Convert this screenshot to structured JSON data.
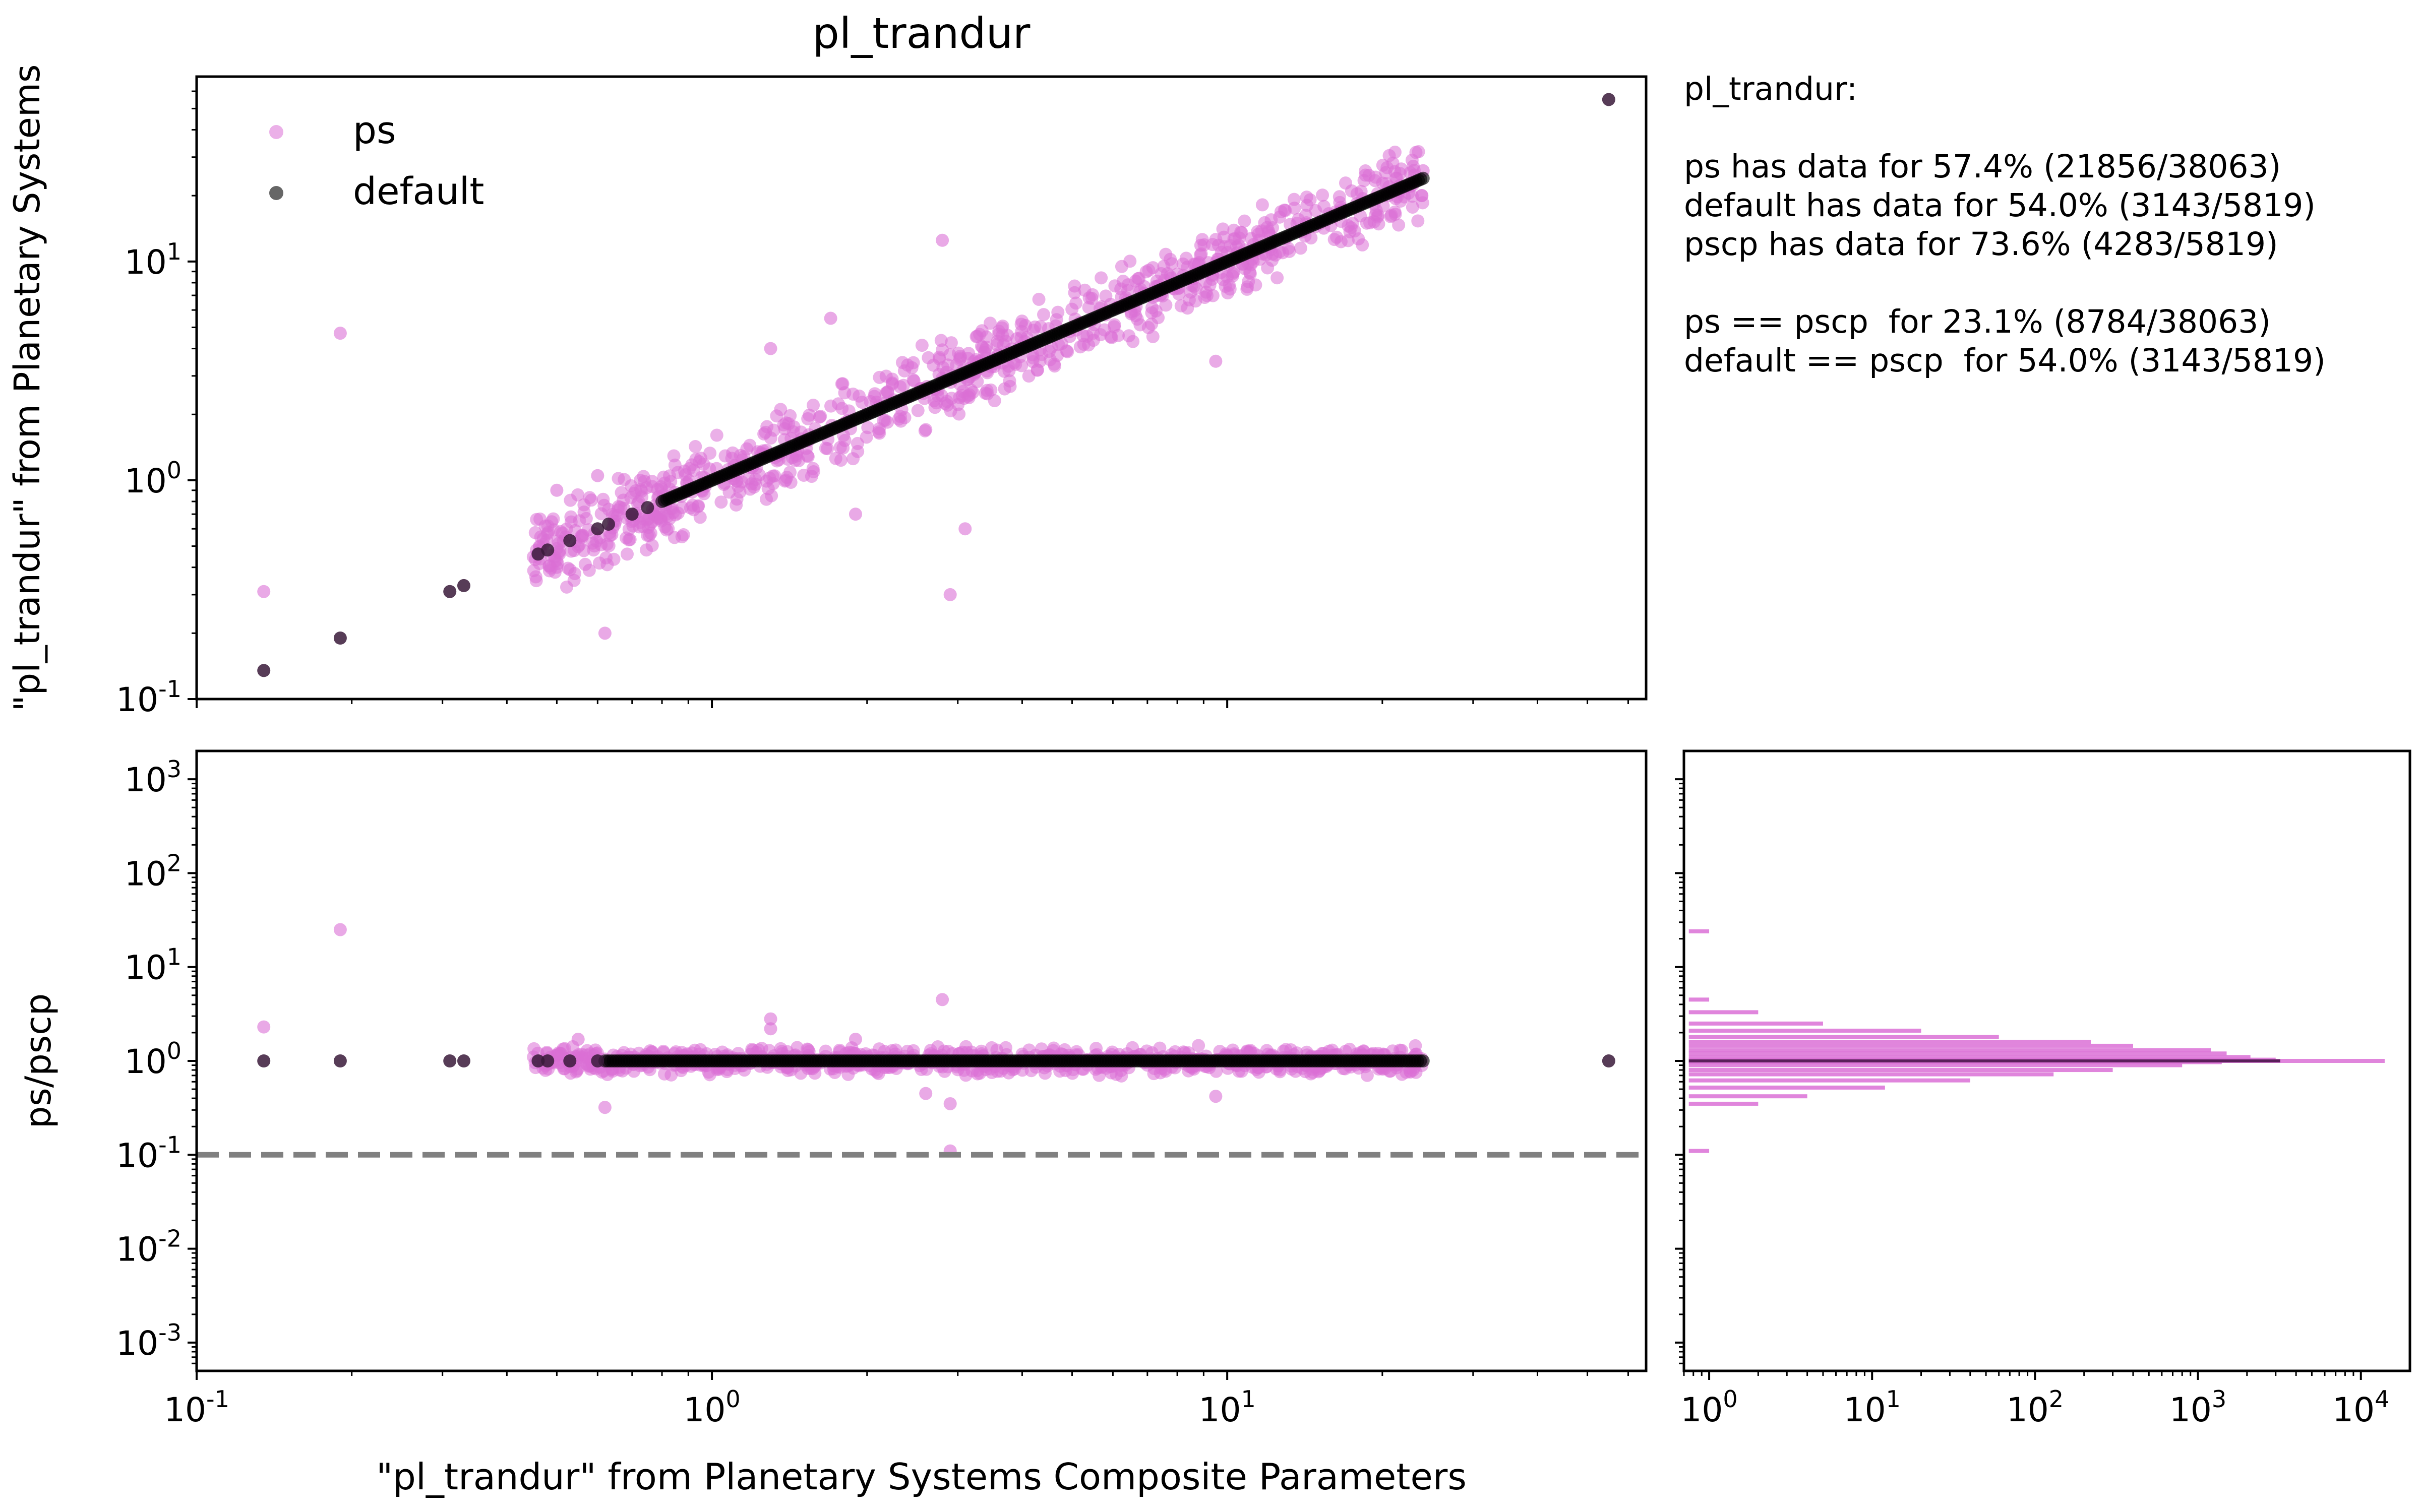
{
  "stats": {
    "header": "pl_trandur:",
    "line1": "ps has data for 57.4% (21856/38063)",
    "line2": "default has data for 54.0% (3143/5819)",
    "line3": "pscp has data for 73.6% (4283/5819)",
    "line4": "ps == pscp  for 23.1% (8784/38063)",
    "line5": "default == pscp  for 54.0% (3143/5819)"
  },
  "colors": {
    "ps": "#da70d6",
    "default": "#000000",
    "dashed": "#808080"
  },
  "chart_data": [
    {
      "type": "scatter",
      "title": "pl_trandur",
      "xlabel": "",
      "ylabel": "\"pl_trandur\" from Planetary Systems",
      "xscale": "log",
      "yscale": "log",
      "xlim": [
        0.1,
        65
      ],
      "ylim": [
        0.1,
        70
      ],
      "yticks": [
        0.1,
        1,
        10
      ],
      "legend": {
        "placement": "top-left",
        "entries": [
          "ps",
          "default"
        ]
      },
      "series": [
        {
          "name": "default",
          "points": [
            [
              0.135,
              0.135
            ],
            [
              0.19,
              0.19
            ],
            [
              0.31,
              0.31
            ],
            [
              0.33,
              0.33
            ],
            [
              0.46,
              0.46
            ],
            [
              0.48,
              0.48
            ],
            [
              0.53,
              0.53
            ],
            [
              0.6,
              0.6
            ],
            [
              0.63,
              0.63
            ],
            [
              0.7,
              0.7
            ],
            [
              0.75,
              0.75
            ],
            [
              55,
              55
            ]
          ],
          "line_range": [
            0.8,
            24
          ]
        },
        {
          "name": "ps",
          "points": [
            [
              0.135,
              0.31
            ],
            [
              0.19,
              4.7
            ],
            [
              0.62,
              0.2
            ],
            [
              2.9,
              0.3
            ],
            [
              2.8,
              12.5
            ],
            [
              1.7,
              5.5
            ],
            [
              3.1,
              0.6
            ],
            [
              1.3,
              4.0
            ],
            [
              9.5,
              3.5
            ],
            [
              0.6,
              1.05
            ],
            [
              24,
              26
            ],
            [
              1.9,
              0.7
            ],
            [
              0.5,
              0.9
            ],
            [
              0.5,
              0.4
            ]
          ],
          "band_range": [
            0.45,
            24
          ],
          "band_spread": 0.15
        }
      ]
    },
    {
      "type": "scatter",
      "title": "",
      "xlabel": "\"pl_trandur\" from Planetary Systems Composite Parameters",
      "ylabel": "ps/pscp",
      "xscale": "log",
      "yscale": "log",
      "xlim": [
        0.1,
        65
      ],
      "ylim": [
        0.0005,
        2000
      ],
      "xticks": [
        0.1,
        1,
        10
      ],
      "yticks": [
        0.001,
        0.01,
        0.1,
        1,
        10,
        100,
        1000
      ],
      "reference_line": {
        "y": 0.1,
        "style": "dashed"
      },
      "series": [
        {
          "name": "default",
          "points": [
            [
              0.135,
              1
            ],
            [
              0.19,
              1
            ],
            [
              0.31,
              1
            ],
            [
              0.33,
              1
            ],
            [
              0.46,
              1
            ],
            [
              0.48,
              1
            ],
            [
              0.53,
              1
            ],
            [
              0.6,
              1
            ],
            [
              55,
              1
            ]
          ],
          "line_range": [
            0.62,
            24
          ]
        },
        {
          "name": "ps",
          "points": [
            [
              0.135,
              2.3
            ],
            [
              0.19,
              25
            ],
            [
              2.8,
              4.5
            ],
            [
              1.3,
              2.8
            ],
            [
              1.3,
              2.2
            ],
            [
              2.9,
              0.11
            ],
            [
              2.9,
              0.35
            ],
            [
              0.62,
              0.32
            ],
            [
              9.5,
              0.42
            ],
            [
              2.6,
              0.45
            ],
            [
              1.9,
              1.7
            ],
            [
              0.55,
              1.7
            ]
          ],
          "band_range": [
            0.45,
            24
          ],
          "band_spread": 0.12
        }
      ]
    },
    {
      "type": "bar",
      "title": "",
      "orientation": "horizontal",
      "xlabel": "",
      "ylabel": "",
      "xscale": "log",
      "yscale": "log",
      "xlim": [
        0.7,
        20000
      ],
      "ylim": [
        0.0005,
        2000
      ],
      "xticks": [
        1,
        10,
        100,
        1000,
        10000
      ],
      "bins": [
        [
          24,
          1
        ],
        [
          4.5,
          1
        ],
        [
          3.3,
          2
        ],
        [
          2.5,
          5
        ],
        [
          2.1,
          20
        ],
        [
          1.8,
          60
        ],
        [
          1.6,
          220
        ],
        [
          1.45,
          400
        ],
        [
          1.3,
          1200
        ],
        [
          1.2,
          1500
        ],
        [
          1.1,
          2100
        ],
        [
          1.03,
          3000
        ],
        [
          1.0,
          14000
        ],
        [
          0.97,
          1400
        ],
        [
          0.9,
          800
        ],
        [
          0.8,
          300
        ],
        [
          0.72,
          130
        ],
        [
          0.62,
          40
        ],
        [
          0.52,
          12
        ],
        [
          0.42,
          4
        ],
        [
          0.35,
          2
        ],
        [
          0.11,
          1
        ]
      ]
    }
  ]
}
